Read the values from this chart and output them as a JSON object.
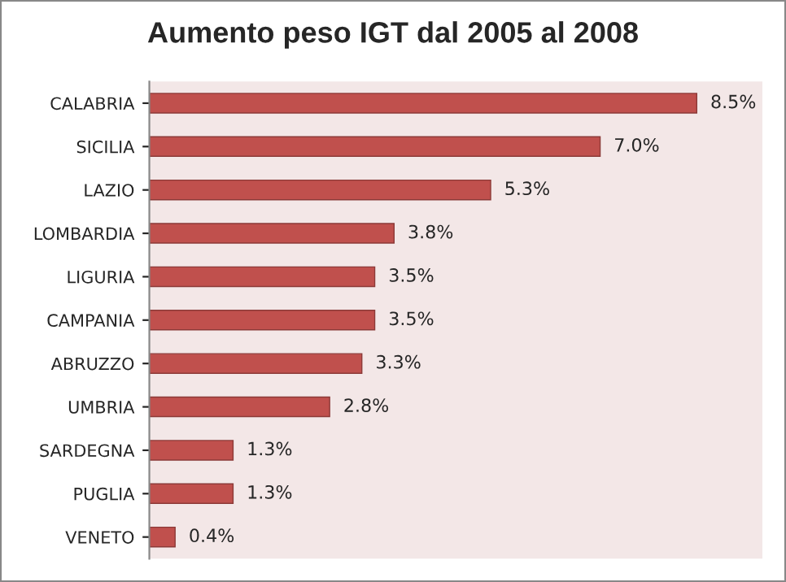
{
  "chart_data": {
    "type": "bar",
    "orientation": "horizontal",
    "title": "Aumento peso IGT dal 2005 al 2008",
    "categories": [
      "CALABRIA",
      "SICILIA",
      "LAZIO",
      "LOMBARDIA",
      "LIGURIA",
      "CAMPANIA",
      "ABRUZZO",
      "UMBRIA",
      "SARDEGNA",
      "PUGLIA",
      "VENETO"
    ],
    "values": [
      8.5,
      7.0,
      5.3,
      3.8,
      3.5,
      3.5,
      3.3,
      2.8,
      1.3,
      1.3,
      0.4
    ],
    "value_labels": [
      "8.5%",
      "7.0%",
      "5.3%",
      "3.8%",
      "3.5%",
      "3.5%",
      "3.3%",
      "2.8%",
      "1.3%",
      "1.3%",
      "0.4%"
    ],
    "color": "#c0504d",
    "grid": false,
    "legend": false
  }
}
